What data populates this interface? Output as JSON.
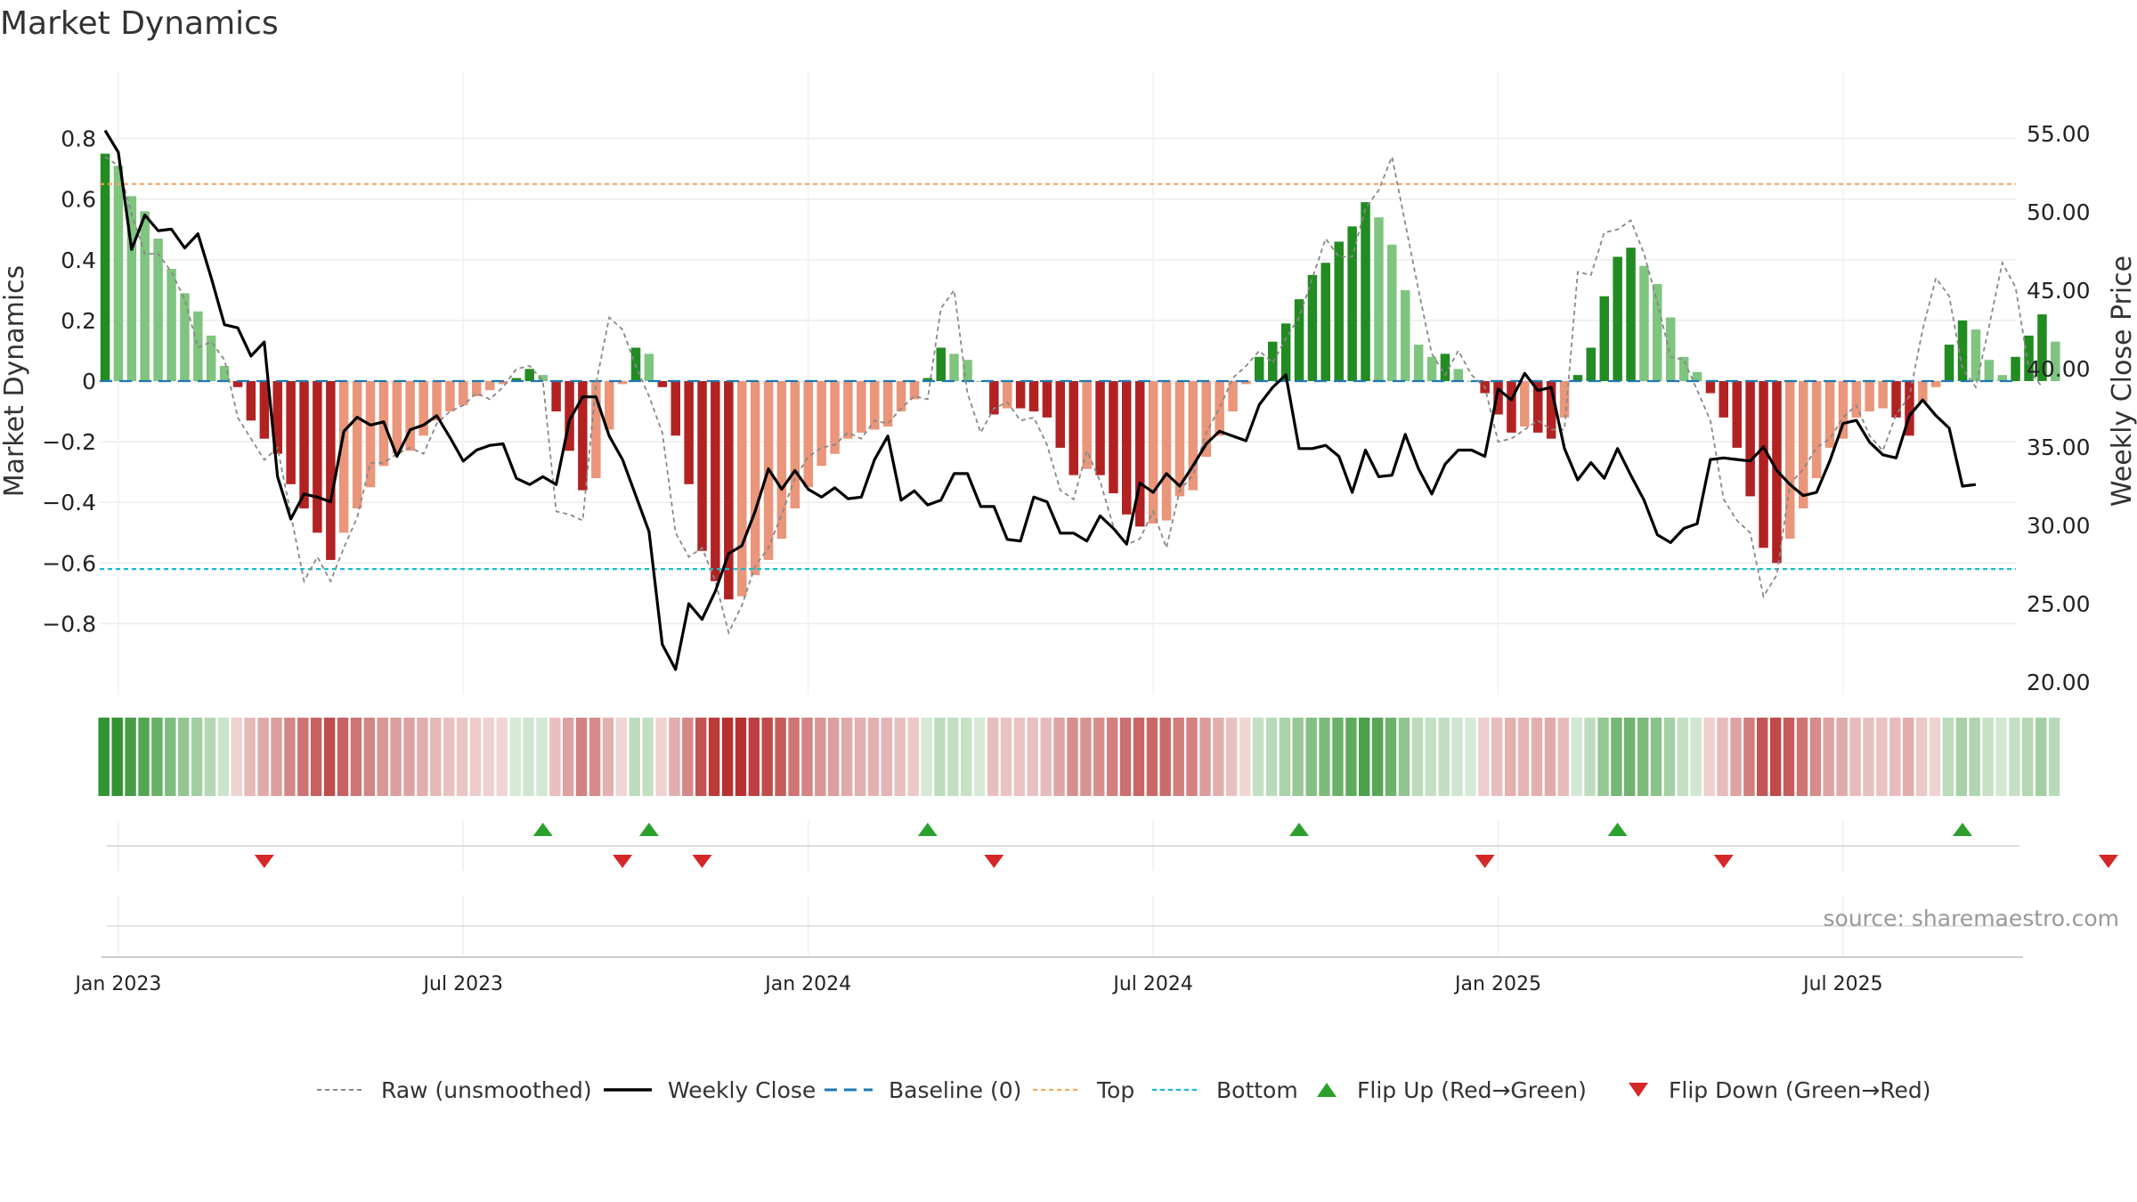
{
  "chart_data": {
    "type": "bar",
    "title": "Market Dynamics",
    "ylabel": "Market Dynamics",
    "y2label": "Weekly Close Price",
    "ylim": [
      -0.82,
      0.8
    ],
    "y2lim": [
      16.5,
      57.8
    ],
    "y_ticks": [
      {
        "v": 0.8,
        "label": "0.8"
      },
      {
        "v": 0.6,
        "label": "0.6"
      },
      {
        "v": 0.4,
        "label": "0.4"
      },
      {
        "v": 0.2,
        "label": "0.2"
      },
      {
        "v": 0,
        "label": "0"
      },
      {
        "v": -0.2,
        "label": "−0.2"
      },
      {
        "v": -0.4,
        "label": "−0.4"
      },
      {
        "v": -0.6,
        "label": "−0.6"
      },
      {
        "v": -0.8,
        "label": "−0.8"
      }
    ],
    "y2_ticks": [
      {
        "v": 55,
        "label": "55.00"
      },
      {
        "v": 50,
        "label": "50.00"
      },
      {
        "v": 45,
        "label": "45.00"
      },
      {
        "v": 40,
        "label": "40.00"
      },
      {
        "v": 35,
        "label": "35.00"
      },
      {
        "v": 30,
        "label": "30.00"
      },
      {
        "v": 25,
        "label": "25.00"
      },
      {
        "v": 20,
        "label": "20.00"
      }
    ],
    "x_ticks": [
      {
        "week": 1,
        "label": "Jan 2023"
      },
      {
        "week": 27,
        "label": "Jul 2023"
      },
      {
        "week": 53,
        "label": "Jan 2024"
      },
      {
        "week": 79,
        "label": "Jul 2024"
      },
      {
        "week": 105,
        "label": "Jan 2025"
      },
      {
        "week": 131,
        "label": "Jul 2025"
      }
    ],
    "top_level": 0.65,
    "bottom_level": -0.62,
    "baseline": 0,
    "dynamics": [
      0.75,
      0.71,
      0.61,
      0.56,
      0.47,
      0.37,
      0.29,
      0.23,
      0.15,
      0.05,
      -0.02,
      -0.13,
      -0.19,
      -0.24,
      -0.34,
      -0.42,
      -0.5,
      -0.59,
      -0.5,
      -0.42,
      -0.35,
      -0.28,
      -0.24,
      -0.23,
      -0.18,
      -0.13,
      -0.1,
      -0.08,
      -0.05,
      -0.03,
      -0.01,
      0.01,
      0.04,
      0.02,
      -0.1,
      -0.23,
      -0.36,
      -0.32,
      -0.16,
      -0.01,
      0.11,
      0.09,
      -0.02,
      -0.18,
      -0.34,
      -0.56,
      -0.66,
      -0.72,
      -0.71,
      -0.64,
      -0.59,
      -0.52,
      -0.42,
      -0.35,
      -0.28,
      -0.24,
      -0.19,
      -0.17,
      -0.16,
      -0.15,
      -0.1,
      -0.06,
      0.01,
      0.11,
      0.09,
      0.07,
      0,
      -0.11,
      -0.09,
      -0.09,
      -0.1,
      -0.12,
      -0.22,
      -0.31,
      -0.29,
      -0.31,
      -0.37,
      -0.44,
      -0.48,
      -0.47,
      -0.46,
      -0.38,
      -0.36,
      -0.25,
      -0.18,
      -0.1,
      -0.01,
      0.08,
      0.13,
      0.19,
      0.27,
      0.35,
      0.39,
      0.46,
      0.51,
      0.59,
      0.54,
      0.45,
      0.3,
      0.12,
      0.08,
      0.09,
      0.04,
      0,
      -0.04,
      -0.11,
      -0.17,
      -0.15,
      -0.17,
      -0.19,
      -0.12,
      0.02,
      0.11,
      0.28,
      0.41,
      0.44,
      0.38,
      0.32,
      0.21,
      0.08,
      0.03,
      -0.04,
      -0.12,
      -0.22,
      -0.38,
      -0.55,
      -0.6,
      -0.52,
      -0.42,
      -0.32,
      -0.22,
      -0.19,
      -0.12,
      -0.1,
      -0.09,
      -0.12,
      -0.18,
      -0.07,
      -0.02,
      0.12,
      0.2,
      0.17,
      0.07,
      0.02,
      0.08,
      0.15,
      0.22,
      0.13
    ],
    "raw": [
      0.74,
      0.71,
      0.55,
      0.42,
      0.42,
      0.36,
      0.27,
      0.11,
      0.13,
      0.07,
      -0.12,
      -0.19,
      -0.26,
      -0.22,
      -0.44,
      -0.66,
      -0.58,
      -0.66,
      -0.55,
      -0.45,
      -0.27,
      -0.27,
      -0.24,
      -0.22,
      -0.24,
      -0.14,
      -0.1,
      -0.08,
      -0.04,
      -0.06,
      -0.02,
      0.04,
      0.05,
      0,
      -0.43,
      -0.44,
      -0.46,
      -0.01,
      0.21,
      0.17,
      0.05,
      -0.05,
      -0.17,
      -0.5,
      -0.58,
      -0.55,
      -0.66,
      -0.83,
      -0.74,
      -0.61,
      -0.55,
      -0.44,
      -0.32,
      -0.25,
      -0.22,
      -0.21,
      -0.17,
      -0.19,
      -0.13,
      -0.14,
      -0.09,
      -0.05,
      -0.06,
      0.24,
      0.3,
      -0.04,
      -0.17,
      -0.09,
      -0.07,
      -0.13,
      -0.12,
      -0.21,
      -0.36,
      -0.39,
      -0.23,
      -0.33,
      -0.48,
      -0.54,
      -0.52,
      -0.43,
      -0.55,
      -0.36,
      -0.31,
      -0.17,
      -0.09,
      0.01,
      0.05,
      0.1,
      0.06,
      0.14,
      0.21,
      0.34,
      0.47,
      0.41,
      0.41,
      0.57,
      0.63,
      0.74,
      0.52,
      0.3,
      0.09,
      0.02,
      0.1,
      0.02,
      -0.02,
      -0.2,
      -0.19,
      -0.16,
      -0.13,
      -0.16,
      -0.16,
      0.36,
      0.35,
      0.49,
      0.5,
      0.53,
      0.42,
      0.26,
      0.08,
      0.07,
      -0.03,
      -0.13,
      -0.39,
      -0.46,
      -0.5,
      -0.71,
      -0.64,
      -0.34,
      -0.29,
      -0.22,
      -0.19,
      -0.12,
      -0.08,
      -0.18,
      -0.23,
      -0.11,
      -0.05,
      0.17,
      0.34,
      0.28,
      0.04,
      -0.02,
      0.18,
      0.39,
      0.31,
      0.04,
      -0.02
    ],
    "close": [
      55.2,
      53.8,
      47.6,
      49.8,
      48.8,
      48.9,
      47.7,
      48.6,
      45.8,
      42.8,
      42.6,
      40.8,
      41.7,
      33.1,
      30.4,
      32.0,
      31.8,
      31.5,
      36.0,
      36.9,
      36.4,
      36.6,
      34.4,
      36.1,
      36.4,
      37.0,
      35.6,
      34.1,
      34.8,
      35.1,
      35.2,
      33.0,
      32.6,
      33.1,
      32.6,
      36.7,
      38.2,
      38.2,
      35.7,
      34.2,
      31.9,
      29.6,
      22.4,
      20.8,
      25.0,
      24.0,
      25.8,
      28.2,
      28.7,
      30.9,
      33.6,
      32.3,
      33.5,
      32.3,
      31.8,
      32.4,
      31.7,
      31.8,
      34.2,
      35.7,
      31.6,
      32.2,
      31.3,
      31.6,
      33.3,
      33.3,
      31.2,
      31.2,
      29.1,
      29.0,
      31.8,
      31.5,
      29.5,
      29.5,
      29.0,
      30.6,
      29.8,
      28.8,
      32.7,
      32.1,
      33.3,
      32.5,
      33.8,
      35.2,
      36.0,
      35.7,
      35.4,
      37.7,
      38.8,
      39.6,
      34.9,
      34.9,
      35.1,
      34.4,
      32.1,
      34.8,
      33.1,
      33.2,
      35.8,
      33.6,
      32.0,
      33.9,
      34.8,
      34.8,
      34.4,
      38.7,
      38.0,
      39.7,
      38.6,
      38.8,
      34.9,
      32.9,
      34.0,
      33.0,
      34.9,
      33.2,
      31.6,
      29.4,
      28.9,
      29.8,
      30.1,
      34.2,
      34.3,
      34.2,
      34.1,
      35.0,
      33.5,
      32.6,
      31.9,
      32.1,
      34.1,
      36.5,
      36.7,
      35.3,
      34.5,
      34.3,
      37.0,
      38.0,
      37.0,
      36.2,
      32.5,
      32.6
    ],
    "flip_up_weeks": [
      33,
      41,
      62,
      90,
      114,
      140
    ],
    "flip_down_weeks": [
      12,
      39,
      45,
      67,
      104,
      122,
      151
    ],
    "legend": {
      "placement": "bottom",
      "entries": [
        "Raw (unsmoothed)",
        "Weekly Close",
        "Baseline (0)",
        "Top",
        "Bottom",
        "Flip Up (Red→Green)",
        "Flip Down (Green→Red)"
      ]
    },
    "grid": true,
    "source": "source: sharemaestro.com",
    "colors": {
      "pos_strong": "#228b22",
      "pos_weak": "#7fc47f",
      "neg_strong": "#b22222",
      "neg_weak": "#e9967a",
      "raw": "#888888",
      "close": "#000000",
      "baseline": "#1f77b4",
      "top": "#f4a460",
      "bottom": "#17becf",
      "flip_up": "#2ca02c",
      "flip_down": "#d62728"
    }
  }
}
